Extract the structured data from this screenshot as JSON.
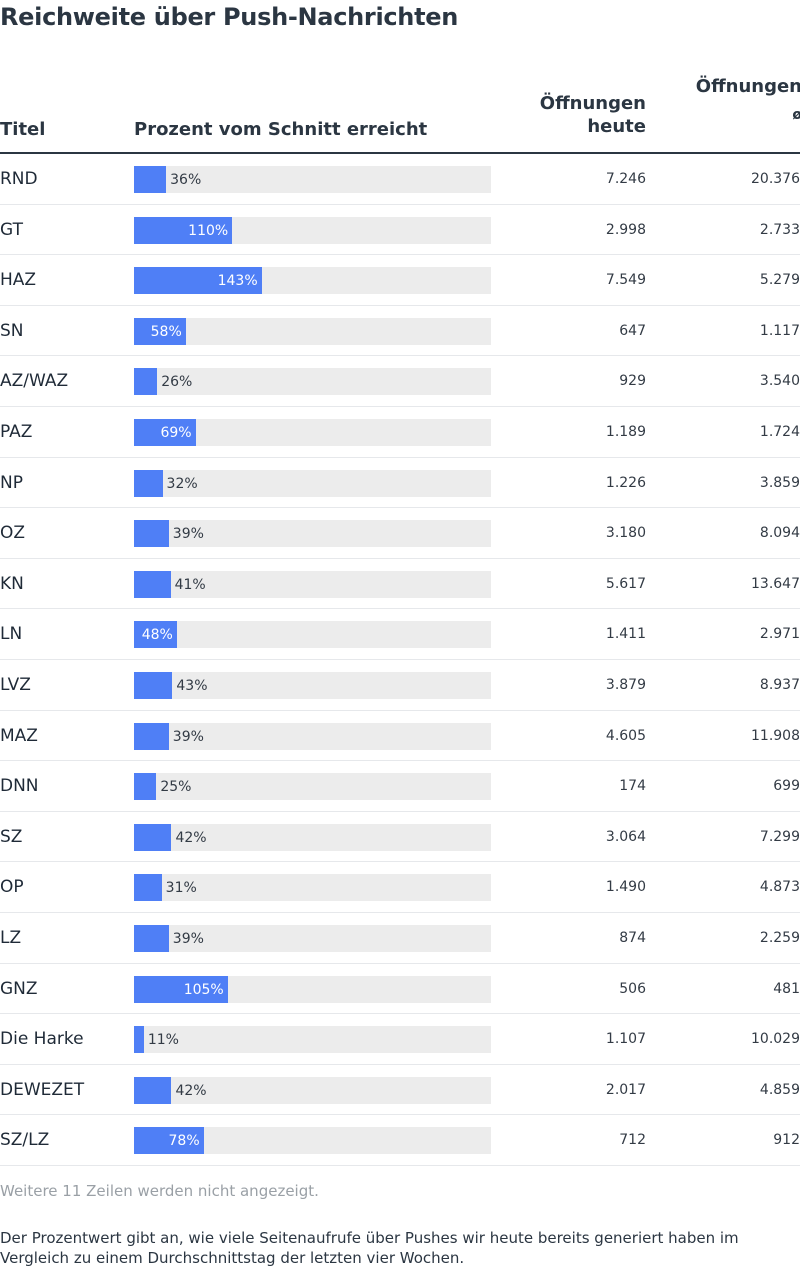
{
  "chart_data": {
    "type": "table",
    "title": "Reichweite über Push-Nachrichten",
    "columns": [
      "Titel",
      "Prozent vom Schnitt erreicht",
      "Öffnungen heute",
      "Öffnungen ø"
    ],
    "rows": [
      {
        "name": "RND",
        "pct": 36,
        "pct_label": "36%",
        "today": "7.246",
        "avg": "20.376"
      },
      {
        "name": "GT",
        "pct": 110,
        "pct_label": "110%",
        "today": "2.998",
        "avg": "2.733"
      },
      {
        "name": "HAZ",
        "pct": 143,
        "pct_label": "143%",
        "today": "7.549",
        "avg": "5.279"
      },
      {
        "name": "SN",
        "pct": 58,
        "pct_label": "58%",
        "today": "647",
        "avg": "1.117"
      },
      {
        "name": "AZ/WAZ",
        "pct": 26,
        "pct_label": "26%",
        "today": "929",
        "avg": "3.540"
      },
      {
        "name": "PAZ",
        "pct": 69,
        "pct_label": "69%",
        "today": "1.189",
        "avg": "1.724"
      },
      {
        "name": "NP",
        "pct": 32,
        "pct_label": "32%",
        "today": "1.226",
        "avg": "3.859"
      },
      {
        "name": "OZ",
        "pct": 39,
        "pct_label": "39%",
        "today": "3.180",
        "avg": "8.094"
      },
      {
        "name": "KN",
        "pct": 41,
        "pct_label": "41%",
        "today": "5.617",
        "avg": "13.647"
      },
      {
        "name": "LN",
        "pct": 48,
        "pct_label": "48%",
        "today": "1.411",
        "avg": "2.971"
      },
      {
        "name": "LVZ",
        "pct": 43,
        "pct_label": "43%",
        "today": "3.879",
        "avg": "8.937"
      },
      {
        "name": "MAZ",
        "pct": 39,
        "pct_label": "39%",
        "today": "4.605",
        "avg": "11.908"
      },
      {
        "name": "DNN",
        "pct": 25,
        "pct_label": "25%",
        "today": "174",
        "avg": "699"
      },
      {
        "name": "SZ",
        "pct": 42,
        "pct_label": "42%",
        "today": "3.064",
        "avg": "7.299"
      },
      {
        "name": "OP",
        "pct": 31,
        "pct_label": "31%",
        "today": "1.490",
        "avg": "4.873"
      },
      {
        "name": "LZ",
        "pct": 39,
        "pct_label": "39%",
        "today": "874",
        "avg": "2.259"
      },
      {
        "name": "GNZ",
        "pct": 105,
        "pct_label": "105%",
        "today": "506",
        "avg": "481"
      },
      {
        "name": "Die Harke",
        "pct": 11,
        "pct_label": "11%",
        "today": "1.107",
        "avg": "10.029"
      },
      {
        "name": "DEWEZET",
        "pct": 42,
        "pct_label": "42%",
        "today": "2.017",
        "avg": "4.859"
      },
      {
        "name": "SZ/LZ",
        "pct": 78,
        "pct_label": "78%",
        "today": "712",
        "avg": "912"
      }
    ],
    "bar_scale_max": 400,
    "colors": {
      "bar": "#4f7ff6",
      "track": "#ececec"
    }
  },
  "header": {
    "title": "Reichweite über Push-Nachrichten",
    "col_title": "Titel",
    "col_pct": "Prozent vom Schnitt erreicht",
    "col_today_line1": "Öffnungen",
    "col_today_line2": "heute",
    "col_avg_line1": "Öffnungen",
    "col_avg_symbol": "ø"
  },
  "footer": {
    "more_rows": "Weitere 11 Zeilen werden nicht angezeigt.",
    "explanation": "Der Prozentwert gibt an, wie viele Seitenaufrufe über Pushes wir heute bereits generiert haben im Vergleich zu einem Durchschnittstag der letzten vier Wochen."
  }
}
